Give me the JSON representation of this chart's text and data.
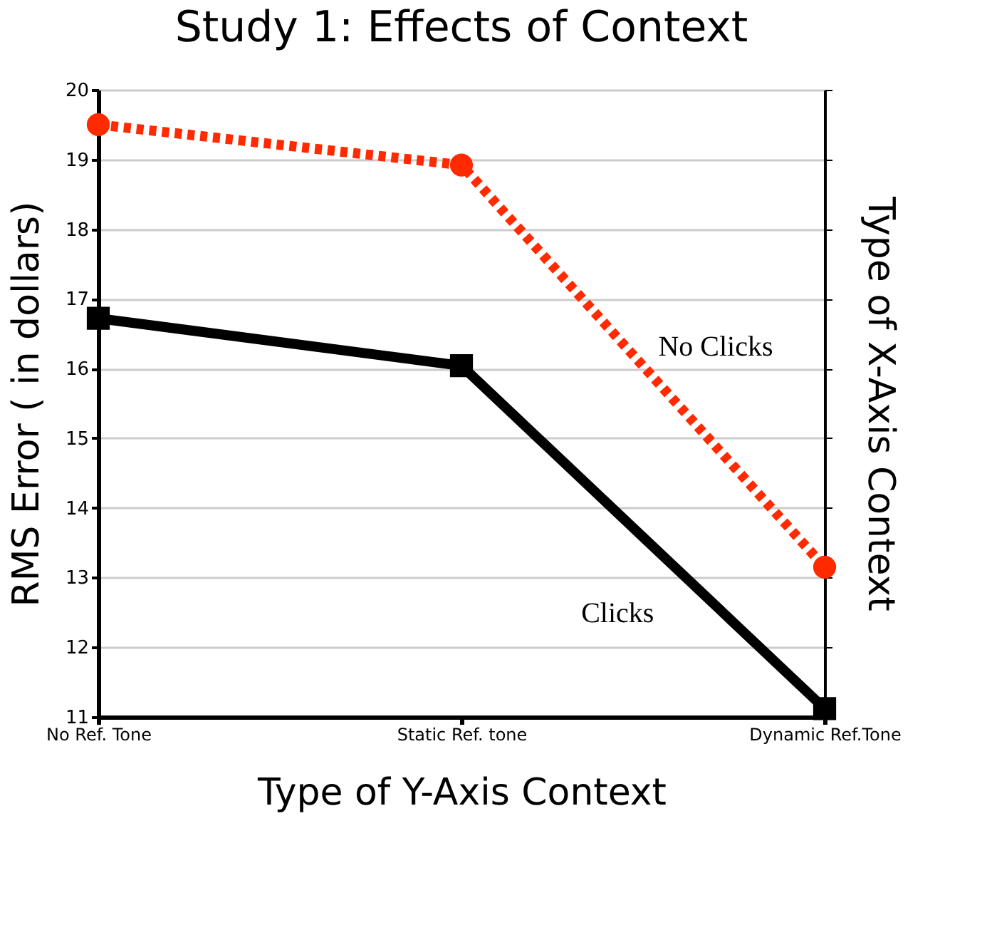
{
  "chart_data": {
    "type": "line",
    "title": "Study 1: Effects of Context",
    "xlabel": "Type of Y-Axis Context",
    "ylabel": "RMS Error ( in dollars)",
    "y2label": "Type of X-Axis Context",
    "categories": [
      "No Ref. Tone",
      "Static Ref. tone",
      "Dynamic Ref.Tone"
    ],
    "series": [
      {
        "name": "No Clicks",
        "color": "#ff2a00",
        "values": [
          19.5,
          18.92,
          13.15
        ],
        "marker": "circle",
        "line_style": "dotted"
      },
      {
        "name": "Clicks",
        "color": "#000000",
        "values": [
          16.72,
          16.04,
          11.12
        ],
        "marker": "square",
        "line_style": "solid"
      }
    ],
    "ylim": [
      11,
      20
    ],
    "yticks": [
      11,
      12,
      13,
      14,
      15,
      16,
      17,
      18,
      19,
      20
    ],
    "grid": "y"
  }
}
